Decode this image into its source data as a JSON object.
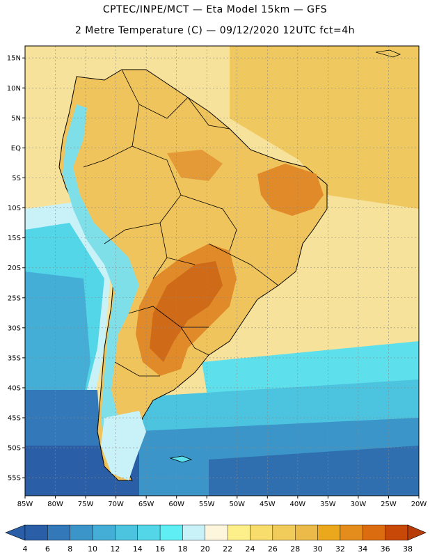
{
  "header": {
    "line1": "CPTEC/INPE/MCT —  Eta Model 15km — GFS",
    "line2": "2 Metre Temperature (C) — 09/12/2020 12UTC fct=4h"
  },
  "map": {
    "lon_range": [
      -85,
      -20
    ],
    "lat_range": [
      -58,
      17
    ],
    "lat_ticks": [
      {
        "value": 15,
        "label": "15N"
      },
      {
        "value": 10,
        "label": "10N"
      },
      {
        "value": 5,
        "label": "5N"
      },
      {
        "value": 0,
        "label": "EQ"
      },
      {
        "value": -5,
        "label": "5S"
      },
      {
        "value": -10,
        "label": "10S"
      },
      {
        "value": -15,
        "label": "15S"
      },
      {
        "value": -20,
        "label": "20S"
      },
      {
        "value": -25,
        "label": "25S"
      },
      {
        "value": -30,
        "label": "30S"
      },
      {
        "value": -35,
        "label": "35S"
      },
      {
        "value": -40,
        "label": "40S"
      },
      {
        "value": -45,
        "label": "45S"
      },
      {
        "value": -50,
        "label": "50S"
      },
      {
        "value": -55,
        "label": "55S"
      }
    ],
    "lon_ticks": [
      {
        "value": -85,
        "label": "85W"
      },
      {
        "value": -80,
        "label": "80W"
      },
      {
        "value": -75,
        "label": "75W"
      },
      {
        "value": -70,
        "label": "70W"
      },
      {
        "value": -65,
        "label": "65W"
      },
      {
        "value": -60,
        "label": "60W"
      },
      {
        "value": -55,
        "label": "55W"
      },
      {
        "value": -50,
        "label": "50W"
      },
      {
        "value": -45,
        "label": "45W"
      },
      {
        "value": -40,
        "label": "40W"
      },
      {
        "value": -35,
        "label": "35W"
      },
      {
        "value": -30,
        "label": "30W"
      },
      {
        "value": -25,
        "label": "25W"
      },
      {
        "value": -20,
        "label": "20W"
      }
    ],
    "colors": {
      "ocean_warm": "#f6e29a",
      "land_warm": "#f0c45c",
      "hot": "#e08a2a",
      "very_hot": "#cf6a18",
      "andes_cold": "#7fdfe8",
      "ocean_cool": "#56c7dc",
      "ocean_cold": "#3a8ec4",
      "ocean_coldest": "#2f6fb0"
    }
  },
  "colorbar": {
    "labels": [
      "4",
      "6",
      "8",
      "10",
      "12",
      "14",
      "16",
      "18",
      "20",
      "22",
      "24",
      "26",
      "28",
      "30",
      "32",
      "34",
      "36",
      "38"
    ],
    "colors": [
      "#2a5fa8",
      "#3378b8",
      "#3b95c8",
      "#44aed6",
      "#4cc4e0",
      "#52d6e8",
      "#5eeef4",
      "#c8f2f8",
      "#fdf6dc",
      "#fdf08a",
      "#f8dc6c",
      "#f2cc5a",
      "#ecba48",
      "#eca81c",
      "#e48c1c",
      "#dc6c10",
      "#c84808"
    ],
    "left_arrow_color": "#2a5fa8",
    "right_arrow_color": "#b83c08"
  }
}
